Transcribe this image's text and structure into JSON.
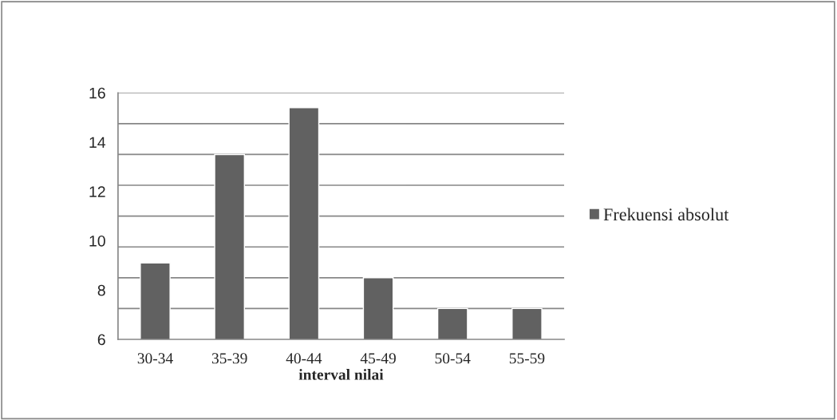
{
  "chart_data": {
    "type": "bar",
    "xlabel": "interval nilai",
    "categories": [
      "30-34",
      "35-39",
      "40-44",
      "45-49",
      "50-54",
      "55-59"
    ],
    "series": [
      {
        "name": "Frekuensi absolut",
        "color": "#616161",
        "values": [
          9.1,
          13.5,
          15.4,
          8.5,
          7.25,
          7.25
        ]
      }
    ],
    "ylim": [
      6,
      16
    ],
    "yticks": [
      6,
      {
        "value": 7.25,
        "label": null
      },
      8,
      {
        "value": 8.5,
        "label": null
      },
      {
        "value": 9.75,
        "label": null
      },
      10,
      {
        "value": 11,
        "label": null
      },
      12,
      {
        "value": 12.25,
        "label": null
      },
      {
        "value": 13.5,
        "label": null
      },
      14,
      {
        "value": 14.75,
        "label": null
      },
      16
    ],
    "grid": "y",
    "legend": "right"
  }
}
